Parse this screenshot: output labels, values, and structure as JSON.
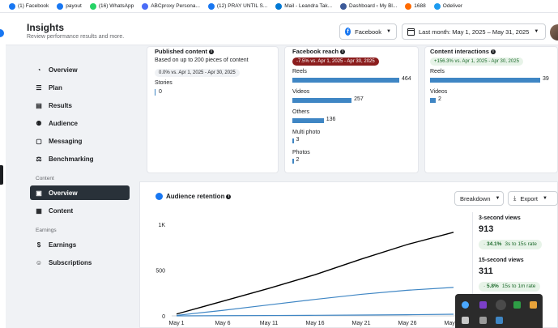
{
  "bookmarks": [
    {
      "label": "(1) Facebook",
      "color": "#1877f2"
    },
    {
      "label": "payout",
      "color": "#1877f2"
    },
    {
      "label": "(16) WhatsApp",
      "color": "#25d366"
    },
    {
      "label": "ABCproxy Persona...",
      "color": "#4a6cf7"
    },
    {
      "label": "(12) PRAY UNTIL S...",
      "color": "#1877f2"
    },
    {
      "label": "Mail - Leandra Tak...",
      "color": "#0078d4"
    },
    {
      "label": "Dashboard ‹ My Bl...",
      "color": "#3c5a99"
    },
    {
      "label": "1688",
      "color": "#ff6a00"
    },
    {
      "label": "Odeliver",
      "color": "#1d9bf0"
    }
  ],
  "header": {
    "title": "Insights",
    "subtitle": "Review performance results and more.",
    "platform": "Facebook",
    "date_range": "Last month: May 1, 2025 – May 31, 2025"
  },
  "sidebar": {
    "items": [
      {
        "label": "Overview",
        "icon": "gauge-icon",
        "glyph": "◔"
      },
      {
        "label": "Plan",
        "icon": "list-icon",
        "glyph": "☰"
      },
      {
        "label": "Results",
        "icon": "chart-icon",
        "glyph": "▤"
      },
      {
        "label": "Audience",
        "icon": "people-icon",
        "glyph": "⚉"
      },
      {
        "label": "Messaging",
        "icon": "message-icon",
        "glyph": "▢"
      },
      {
        "label": "Benchmarking",
        "icon": "scale-icon",
        "glyph": "⚖"
      }
    ],
    "content_label": "Content",
    "content_items": [
      {
        "label": "Overview",
        "icon": "content-overview-icon",
        "glyph": "▣",
        "active": true
      },
      {
        "label": "Content",
        "icon": "grid-icon",
        "glyph": "▦"
      }
    ],
    "earnings_label": "Earnings",
    "earnings_items": [
      {
        "label": "Earnings",
        "icon": "dollar-icon",
        "glyph": "$"
      },
      {
        "label": "Subscriptions",
        "icon": "subscriber-icon",
        "glyph": "☺"
      }
    ]
  },
  "published": {
    "title": "Published content",
    "note": "Based on up to 200 pieces of content",
    "change": "0.0% vs. Apr 1, 2025 - Apr 30, 2025",
    "rows": [
      {
        "label": "Stories",
        "value": "0"
      }
    ]
  },
  "reach": {
    "title": "Facebook reach",
    "change": "-7.5% vs. Apr 1, 2025 - Apr 30, 2025",
    "max": 464,
    "rows": [
      {
        "label": "Reels",
        "value": 464
      },
      {
        "label": "Videos",
        "value": 257
      },
      {
        "label": "Others",
        "value": 136
      },
      {
        "label": "Multi photo",
        "value": 3
      },
      {
        "label": "Photos",
        "value": 2
      }
    ]
  },
  "interactions": {
    "title": "Content interactions",
    "change": "+156.3% vs. Apr 1, 2025 - Apr 30, 2025",
    "max": 39,
    "rows": [
      {
        "label": "Reels",
        "value": 39
      },
      {
        "label": "Videos",
        "value": 2
      }
    ]
  },
  "retention": {
    "title": "Audience retention",
    "breakdown_label": "Breakdown",
    "export_label": "Export",
    "stats": [
      {
        "label": "3-second views",
        "value": "913",
        "rate": "34.1%",
        "rate_label": "3s to 15s rate"
      },
      {
        "label": "15-second views",
        "value": "311",
        "rate": "5.8%",
        "rate_label": "15s to 1m rate"
      }
    ]
  },
  "chart_data": {
    "type": "line",
    "x": [
      "May 1",
      "May 6",
      "May 11",
      "May 16",
      "May 21",
      "May 26",
      "May 31"
    ],
    "y_ticks": [
      "1K",
      "500",
      "0"
    ],
    "ylim": [
      0,
      1000
    ],
    "series": [
      {
        "color": "#000000",
        "values": [
          20,
          160,
          300,
          450,
          620,
          780,
          913
        ]
      },
      {
        "color": "#3f86c4",
        "values": [
          5,
          60,
          120,
          180,
          235,
          280,
          311
        ]
      },
      {
        "color": "#3f86c4",
        "values": [
          0,
          2,
          4,
          6,
          9,
          12,
          18
        ]
      }
    ]
  }
}
